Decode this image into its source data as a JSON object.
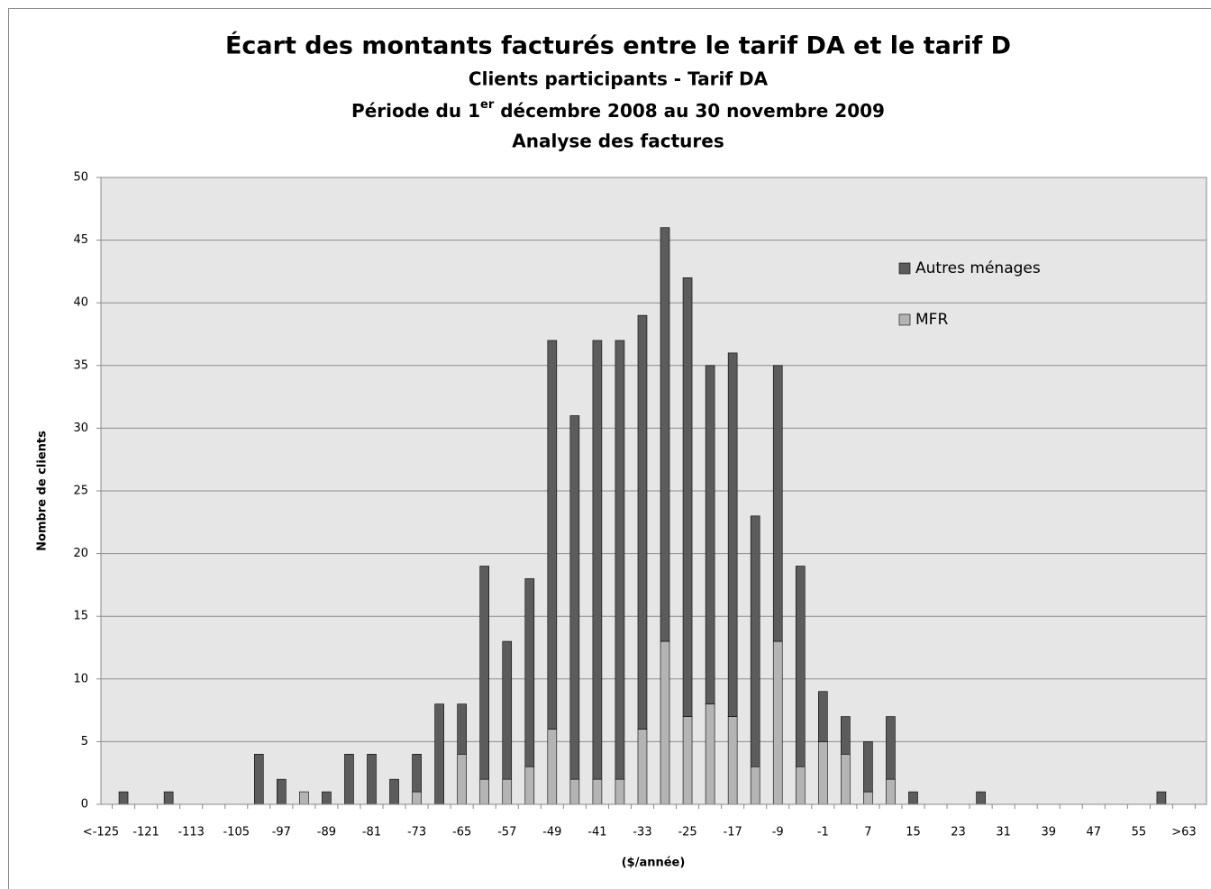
{
  "chart_data": {
    "type": "bar",
    "stacked": true,
    "title": "Écart des montants facturés entre le tarif DA et le tarif D",
    "subtitle": "Clients participants - Tarif DA",
    "period": {
      "before": "Période du 1",
      "sup": "er",
      "after": " décembre 2008 au 30 novembre 2009"
    },
    "subtitle2": "Analyse des factures",
    "x_label": "($/année)",
    "y_label": "Nombre de clients",
    "categories": [
      "<-125",
      null,
      "-121",
      null,
      "-113",
      null,
      "-105",
      null,
      "-97",
      null,
      "-89",
      null,
      "-81",
      null,
      "-73",
      null,
      "-65",
      null,
      "-57",
      null,
      "-49",
      null,
      "-41",
      null,
      "-33",
      null,
      "-25",
      null,
      "-17",
      null,
      "-9",
      null,
      "-1",
      null,
      "7",
      null,
      "15",
      null,
      "23",
      null,
      "31",
      null,
      "39",
      null,
      "47",
      null,
      "55",
      null,
      ">63"
    ],
    "series": [
      {
        "name": "MFR",
        "color": "#b4b4b4",
        "values": [
          0,
          0,
          0,
          0,
          0,
          0,
          0,
          0,
          0,
          1,
          0,
          0,
          0,
          0,
          1,
          0,
          4,
          2,
          2,
          3,
          6,
          2,
          2,
          2,
          6,
          13,
          7,
          8,
          7,
          3,
          13,
          3,
          5,
          4,
          1,
          2,
          0,
          0,
          0,
          0,
          0,
          0,
          0,
          0,
          0,
          0,
          0,
          0,
          0
        ]
      },
      {
        "name": "Autres ménages",
        "color": "#5c5c5c",
        "values": [
          0,
          1,
          0,
          1,
          0,
          0,
          0,
          4,
          2,
          0,
          1,
          4,
          4,
          2,
          3,
          8,
          4,
          17,
          11,
          15,
          31,
          29,
          35,
          35,
          33,
          33,
          35,
          27,
          29,
          20,
          22,
          16,
          4,
          3,
          4,
          5,
          1,
          0,
          0,
          1,
          0,
          0,
          0,
          0,
          0,
          0,
          0,
          1,
          0
        ]
      }
    ],
    "ylim": [
      0,
      50
    ],
    "yticks": [
      0,
      5,
      10,
      15,
      20,
      25,
      30,
      35,
      40,
      45,
      50
    ],
    "grid": true,
    "plot_background": "#e6e6e6",
    "legend": "right"
  }
}
